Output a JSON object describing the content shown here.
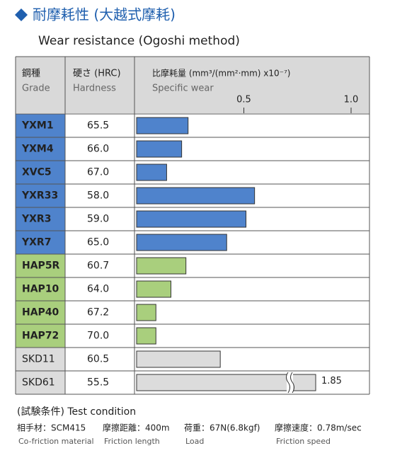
{
  "chart_data": {
    "type": "bar",
    "title": "耐摩耗性 (大越式摩耗)",
    "subtitle": "Wear resistance (Ogoshi method)",
    "headers": {
      "grade_jp": "鋼種",
      "grade_en": "Grade",
      "hardness_jp": "硬さ (HRC)",
      "hardness_en": "Hardness",
      "wear_jp": "比摩耗量 (mm³/(mm²·mm) x10⁻⁷)",
      "wear_en": "Specific wear"
    },
    "categories": [
      "YXM1",
      "YXM4",
      "XVC5",
      "YXR33",
      "YXR3",
      "YXR7",
      "HAP5R",
      "HAP10",
      "HAP40",
      "HAP72",
      "SKD11",
      "SKD61"
    ],
    "hardness": [
      "65.5",
      "66.0",
      "67.0",
      "58.0",
      "59.0",
      "65.0",
      "60.7",
      "64.0",
      "67.2",
      "70.0",
      "60.5",
      "55.5"
    ],
    "values": [
      0.24,
      0.21,
      0.14,
      0.55,
      0.51,
      0.42,
      0.23,
      0.16,
      0.09,
      0.09,
      0.39,
      1.85
    ],
    "value_labels": [
      null,
      null,
      null,
      null,
      null,
      null,
      null,
      null,
      null,
      null,
      null,
      "1.85"
    ],
    "colors": [
      "#4f83cc",
      "#4f83cc",
      "#4f83cc",
      "#4f83cc",
      "#4f83cc",
      "#4f83cc",
      "#a9cf7d",
      "#a9cf7d",
      "#a9cf7d",
      "#a9cf7d",
      "#dcdcdc",
      "#dcdcdc"
    ],
    "xlim": [
      0,
      1.0
    ],
    "xticks": [
      0.5,
      {
        "value": 1.0,
        "label": "1.0"
      }
    ],
    "axis_break": true,
    "test_condition": {
      "title": "(試験条件) Test condition",
      "items": [
        {
          "jp": "相手材：SCM415",
          "en": "Co-friction material"
        },
        {
          "jp": "摩擦距離：400m",
          "en": "Friction length"
        },
        {
          "jp": "荷重：67N(6.8kgf)",
          "en": "Load"
        },
        {
          "jp": "摩擦速度：0.78m/sec",
          "en": "Friction speed"
        }
      ]
    }
  }
}
